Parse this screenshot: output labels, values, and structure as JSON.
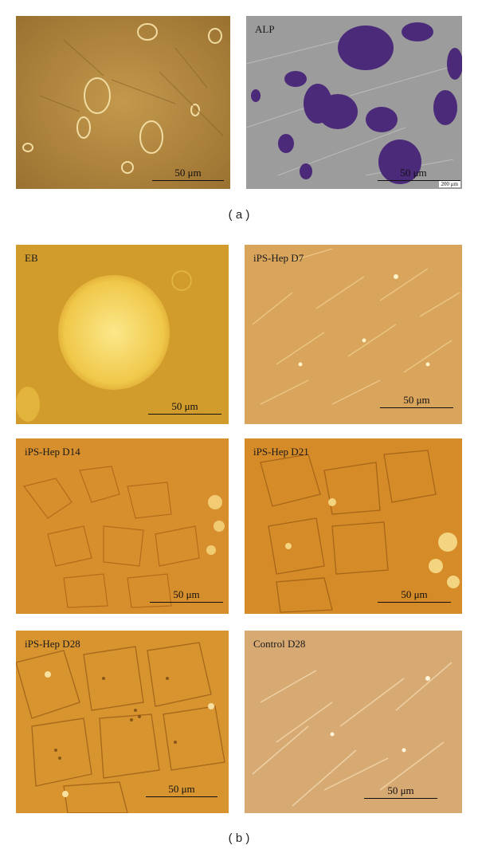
{
  "figure": {
    "part_a_label": "( a )",
    "part_b_label": "( b )"
  },
  "panels": [
    {
      "id": "a-brightfield",
      "label": "",
      "scale_bar": "50 μm"
    },
    {
      "id": "a-alp",
      "label": "ALP",
      "scale_bar": "50 μm",
      "secondary_scale": "200 μm"
    },
    {
      "id": "b-eb",
      "label": "EB",
      "scale_bar": "50 μm"
    },
    {
      "id": "b-d7",
      "label": "iPS-Hep D7",
      "scale_bar": "50 μm"
    },
    {
      "id": "b-d14",
      "label": "iPS-Hep D14",
      "scale_bar": "50 μm"
    },
    {
      "id": "b-d21",
      "label": "iPS-Hep D21",
      "scale_bar": "50 μm"
    },
    {
      "id": "b-d28",
      "label": "iPS-Hep D28",
      "scale_bar": "50 μm"
    },
    {
      "id": "b-control",
      "label": "Control D28",
      "scale_bar": "50 μm"
    }
  ],
  "colors": {
    "brightfield_amber": "#b88a3e",
    "alp_gray": "#9a9a9a",
    "alp_purple": "#4b2a7a",
    "eb_gold": "#d9a12a",
    "hep_orange": "#d8902a",
    "control_tan": "#d9ab72"
  }
}
